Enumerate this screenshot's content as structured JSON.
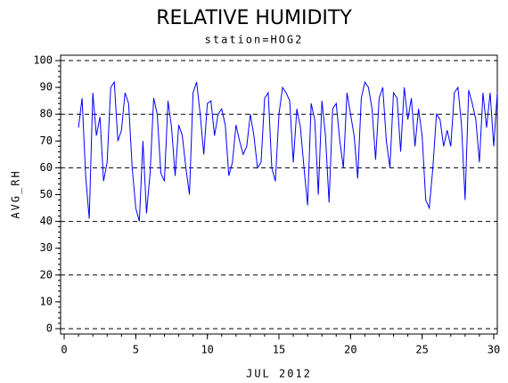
{
  "chart_data": {
    "type": "line",
    "title": "RELATIVE HUMIDITY",
    "subtitle": "station=HOG2",
    "ylabel": "AVG_RH",
    "xlabel": "JUL 2012",
    "xlim": [
      -0.25,
      30.25
    ],
    "ylim": [
      -2,
      102
    ],
    "xticks": [
      0,
      5,
      10,
      15,
      20,
      25,
      30
    ],
    "yticks": [
      0,
      10,
      20,
      30,
      40,
      50,
      60,
      70,
      80,
      90,
      100
    ],
    "xminorticks": [
      0,
      1,
      2,
      3,
      4,
      5,
      6,
      7,
      8,
      9,
      10,
      11,
      12,
      13,
      14,
      15,
      16,
      17,
      18,
      19,
      20,
      21,
      22,
      23,
      24,
      25,
      26,
      27,
      28,
      29,
      30
    ],
    "yminorticks": [
      0,
      2,
      4,
      6,
      8,
      10,
      12,
      14,
      16,
      18,
      20,
      22,
      24,
      26,
      28,
      30,
      32,
      34,
      36,
      38,
      40,
      42,
      44,
      46,
      48,
      50,
      52,
      54,
      56,
      58,
      60,
      62,
      64,
      66,
      68,
      70,
      72,
      74,
      76,
      78,
      80,
      82,
      84,
      86,
      88,
      90,
      92,
      94,
      96,
      98,
      100
    ],
    "ygrid": [
      0,
      20,
      40,
      60,
      80,
      100
    ],
    "color": "#0000ff",
    "x": [
      1,
      1.25,
      1.5,
      1.75,
      2,
      2.25,
      2.5,
      2.75,
      3,
      3.25,
      3.5,
      3.75,
      4,
      4.25,
      4.5,
      4.75,
      5,
      5.25,
      5.5,
      5.75,
      6,
      6.25,
      6.5,
      6.75,
      7,
      7.25,
      7.5,
      7.75,
      8,
      8.25,
      8.5,
      8.75,
      9,
      9.25,
      9.5,
      9.75,
      10,
      10.25,
      10.5,
      10.75,
      11,
      11.25,
      11.5,
      11.75,
      12,
      12.25,
      12.5,
      12.75,
      13,
      13.25,
      13.5,
      13.75,
      14,
      14.25,
      14.5,
      14.75,
      15,
      15.25,
      15.5,
      15.75,
      16,
      16.25,
      16.5,
      16.75,
      17,
      17.25,
      17.5,
      17.75,
      18,
      18.25,
      18.5,
      18.75,
      19,
      19.25,
      19.5,
      19.75,
      20,
      20.25,
      20.5,
      20.75,
      21,
      21.25,
      21.5,
      21.75,
      22,
      22.25,
      22.5,
      22.75,
      23,
      23.25,
      23.5,
      23.75,
      24,
      24.25,
      24.5,
      24.75,
      25,
      25.25,
      25.5,
      25.75,
      26,
      26.25,
      26.5,
      26.75,
      27,
      27.25,
      27.5,
      27.75,
      28,
      28.25,
      28.5,
      28.75,
      29,
      29.25,
      29.5,
      29.75,
      30,
      30.25
    ],
    "values": [
      75,
      86,
      57,
      41,
      88,
      72,
      79,
      55,
      62,
      90,
      92,
      70,
      74,
      88,
      84,
      60,
      45,
      40,
      70,
      43,
      58,
      86,
      80,
      58,
      55,
      85,
      75,
      57,
      76,
      72,
      60,
      50,
      88,
      92,
      80,
      65,
      84,
      85,
      72,
      80,
      82,
      76,
      57,
      62,
      76,
      70,
      65,
      68,
      80,
      72,
      60,
      62,
      86,
      88,
      60,
      55,
      80,
      90,
      88,
      85,
      62,
      82,
      75,
      60,
      46,
      84,
      78,
      50,
      85,
      72,
      47,
      82,
      84,
      70,
      60,
      88,
      80,
      72,
      56,
      86,
      92,
      90,
      82,
      63,
      86,
      90,
      70,
      60,
      88,
      86,
      66,
      90,
      78,
      86,
      68,
      82,
      72,
      48,
      45,
      60,
      80,
      78,
      68,
      74,
      68,
      88,
      90,
      76,
      48,
      89,
      84,
      78,
      62,
      88,
      75,
      88,
      68,
      88
    ]
  }
}
